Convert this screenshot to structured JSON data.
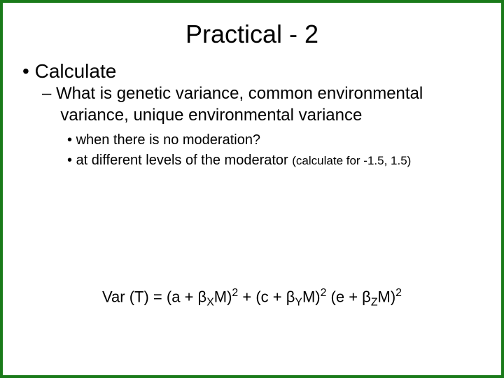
{
  "colors": {
    "border": "#1a7a1a",
    "background": "#ffffff",
    "text": "#000000"
  },
  "typography": {
    "family": "Arial, Helvetica, sans-serif",
    "title_size": 36,
    "lvl1_size": 28,
    "lvl2_size": 24,
    "lvl3_size": 20,
    "small_size": 17,
    "formula_size": 22
  },
  "title": "Practical - 2",
  "bullets": {
    "lvl1": "Calculate",
    "lvl2": "What is genetic variance, common environmental variance, unique environmental variance",
    "lvl3a": "when there is no moderation?",
    "lvl3b_main": "at different levels of the moderator ",
    "lvl3b_small": "(calculate for -1.5, 1.5)"
  },
  "formula": {
    "lhs": "Var (T) =  ",
    "t1a": "(a + β",
    "t1sub": "X",
    "t1b": "M)",
    "sq": "2",
    "plus": " + ",
    "t2a": "(c + β",
    "t2sub": "Y",
    "t2b": "M)",
    "space": " ",
    "t3a": "(e + β",
    "t3sub": "Z",
    "t3b": "M)"
  }
}
